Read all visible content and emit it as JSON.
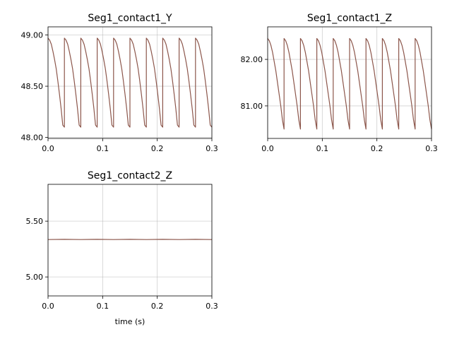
{
  "chart_data": [
    {
      "type": "line",
      "title": "Seg1_contact1_Y",
      "xlabel": "",
      "ylabel": "",
      "xlim": [
        0.0,
        0.3
      ],
      "ylim": [
        47.99,
        49.08
      ],
      "xticks": [
        0.0,
        0.1,
        0.2,
        0.3
      ],
      "xtick_labels": [
        "0.0",
        "0.1",
        "0.2",
        "0.3"
      ],
      "yticks": [
        48.0,
        48.5,
        49.0
      ],
      "ytick_labels": [
        "48.00",
        "48.50",
        "49.00"
      ],
      "grid": true,
      "line_color": "#8c564b",
      "series": [
        {
          "x": [
            0.0,
            0.003,
            0.006,
            0.009,
            0.012,
            0.015,
            0.018,
            0.021,
            0.024,
            0.027,
            0.03,
            0.03,
            0.033,
            0.036,
            0.039,
            0.042,
            0.045,
            0.048,
            0.051,
            0.054,
            0.057,
            0.06,
            0.06,
            0.063,
            0.066,
            0.069,
            0.072,
            0.075,
            0.078,
            0.081,
            0.084,
            0.087,
            0.09,
            0.09,
            0.093,
            0.096,
            0.099,
            0.102,
            0.105,
            0.108,
            0.111,
            0.114,
            0.117,
            0.12,
            0.12,
            0.123,
            0.126,
            0.129,
            0.132,
            0.135,
            0.138,
            0.141,
            0.144,
            0.147,
            0.15,
            0.15,
            0.153,
            0.156,
            0.159,
            0.162,
            0.165,
            0.168,
            0.171,
            0.174,
            0.177,
            0.18,
            0.18,
            0.183,
            0.186,
            0.189,
            0.192,
            0.195,
            0.198,
            0.201,
            0.204,
            0.207,
            0.21,
            0.21,
            0.213,
            0.216,
            0.219,
            0.222,
            0.225,
            0.228,
            0.231,
            0.234,
            0.237,
            0.24,
            0.24,
            0.243,
            0.246,
            0.249,
            0.252,
            0.255,
            0.258,
            0.261,
            0.264,
            0.267,
            0.27,
            0.27,
            0.273,
            0.276,
            0.279,
            0.282,
            0.285,
            0.288,
            0.291,
            0.294,
            0.297,
            0.3
          ],
          "y": [
            48.97,
            48.95,
            48.91,
            48.84,
            48.76,
            48.67,
            48.55,
            48.42,
            48.28,
            48.12,
            48.1,
            48.97,
            48.95,
            48.91,
            48.84,
            48.76,
            48.67,
            48.55,
            48.42,
            48.28,
            48.12,
            48.1,
            48.97,
            48.95,
            48.91,
            48.84,
            48.76,
            48.67,
            48.55,
            48.42,
            48.28,
            48.12,
            48.1,
            48.97,
            48.95,
            48.91,
            48.84,
            48.76,
            48.67,
            48.55,
            48.42,
            48.28,
            48.12,
            48.1,
            48.97,
            48.95,
            48.91,
            48.84,
            48.76,
            48.67,
            48.55,
            48.42,
            48.28,
            48.12,
            48.1,
            48.97,
            48.95,
            48.91,
            48.84,
            48.76,
            48.67,
            48.55,
            48.42,
            48.28,
            48.12,
            48.1,
            48.97,
            48.95,
            48.91,
            48.84,
            48.76,
            48.67,
            48.55,
            48.42,
            48.28,
            48.12,
            48.1,
            48.97,
            48.95,
            48.91,
            48.84,
            48.76,
            48.67,
            48.55,
            48.42,
            48.28,
            48.12,
            48.1,
            48.97,
            48.95,
            48.91,
            48.84,
            48.76,
            48.67,
            48.55,
            48.42,
            48.28,
            48.12,
            48.1,
            48.97,
            48.95,
            48.91,
            48.84,
            48.76,
            48.67,
            48.55,
            48.42,
            48.28,
            48.12,
            48.1
          ]
        }
      ]
    },
    {
      "type": "line",
      "title": "Seg1_contact1_Z",
      "xlabel": "",
      "ylabel": "",
      "xlim": [
        0.0,
        0.3
      ],
      "ylim": [
        80.3,
        82.7
      ],
      "xticks": [
        0.0,
        0.1,
        0.2,
        0.3
      ],
      "xtick_labels": [
        "0.0",
        "0.1",
        "0.2",
        "0.3"
      ],
      "yticks": [
        81.0,
        82.0
      ],
      "ytick_labels": [
        "81.00",
        "82.00"
      ],
      "grid": true,
      "line_color": "#8c564b",
      "series": [
        {
          "x": [
            0.0,
            0.003,
            0.006,
            0.009,
            0.012,
            0.015,
            0.018,
            0.021,
            0.024,
            0.027,
            0.03,
            0.03,
            0.033,
            0.036,
            0.039,
            0.042,
            0.045,
            0.048,
            0.051,
            0.054,
            0.057,
            0.06,
            0.06,
            0.063,
            0.066,
            0.069,
            0.072,
            0.075,
            0.078,
            0.081,
            0.084,
            0.087,
            0.09,
            0.09,
            0.093,
            0.096,
            0.099,
            0.102,
            0.105,
            0.108,
            0.111,
            0.114,
            0.117,
            0.12,
            0.12,
            0.123,
            0.126,
            0.129,
            0.132,
            0.135,
            0.138,
            0.141,
            0.144,
            0.147,
            0.15,
            0.15,
            0.153,
            0.156,
            0.159,
            0.162,
            0.165,
            0.168,
            0.171,
            0.174,
            0.177,
            0.18,
            0.18,
            0.183,
            0.186,
            0.189,
            0.192,
            0.195,
            0.198,
            0.201,
            0.204,
            0.207,
            0.21,
            0.21,
            0.213,
            0.216,
            0.219,
            0.222,
            0.225,
            0.228,
            0.231,
            0.234,
            0.237,
            0.24,
            0.24,
            0.243,
            0.246,
            0.249,
            0.252,
            0.255,
            0.258,
            0.261,
            0.264,
            0.267,
            0.27,
            0.27,
            0.273,
            0.276,
            0.279,
            0.282,
            0.285,
            0.288,
            0.291,
            0.294,
            0.297,
            0.3
          ],
          "y": [
            82.45,
            82.4,
            82.3,
            82.15,
            81.95,
            81.75,
            81.5,
            81.25,
            81.0,
            80.7,
            80.5,
            82.45,
            82.4,
            82.3,
            82.15,
            81.95,
            81.75,
            81.5,
            81.25,
            81.0,
            80.7,
            80.5,
            82.45,
            82.4,
            82.3,
            82.15,
            81.95,
            81.75,
            81.5,
            81.25,
            81.0,
            80.7,
            80.5,
            82.45,
            82.4,
            82.3,
            82.15,
            81.95,
            81.75,
            81.5,
            81.25,
            81.0,
            80.7,
            80.5,
            82.45,
            82.4,
            82.3,
            82.15,
            81.95,
            81.75,
            81.5,
            81.25,
            81.0,
            80.7,
            80.5,
            82.45,
            82.4,
            82.3,
            82.15,
            81.95,
            81.75,
            81.5,
            81.25,
            81.0,
            80.7,
            80.5,
            82.45,
            82.4,
            82.3,
            82.15,
            81.95,
            81.75,
            81.5,
            81.25,
            81.0,
            80.7,
            80.5,
            82.45,
            82.4,
            82.3,
            82.15,
            81.95,
            81.75,
            81.5,
            81.25,
            81.0,
            80.7,
            80.5,
            82.45,
            82.4,
            82.3,
            82.15,
            81.95,
            81.75,
            81.5,
            81.25,
            81.0,
            80.7,
            80.5,
            82.45,
            82.4,
            82.3,
            82.15,
            81.95,
            81.75,
            81.5,
            81.25,
            81.0,
            80.7,
            80.5
          ]
        }
      ]
    },
    {
      "type": "line",
      "title": "Seg1_contact2_Z",
      "xlabel": "time (s)",
      "ylabel": "",
      "xlim": [
        0.0,
        0.3
      ],
      "ylim": [
        4.83,
        5.83
      ],
      "xticks": [
        0.0,
        0.1,
        0.2,
        0.3
      ],
      "xtick_labels": [
        "0.0",
        "0.1",
        "0.2",
        "0.3"
      ],
      "yticks": [
        5.0,
        5.5
      ],
      "ytick_labels": [
        "5.00",
        "5.50"
      ],
      "grid": true,
      "line_color": "#8c564b",
      "series": [
        {
          "x": [
            0.0,
            0.03,
            0.06,
            0.09,
            0.12,
            0.15,
            0.18,
            0.21,
            0.24,
            0.27,
            0.3
          ],
          "y": [
            5.335,
            5.337,
            5.335,
            5.337,
            5.335,
            5.337,
            5.335,
            5.337,
            5.335,
            5.337,
            5.335
          ]
        }
      ]
    }
  ]
}
